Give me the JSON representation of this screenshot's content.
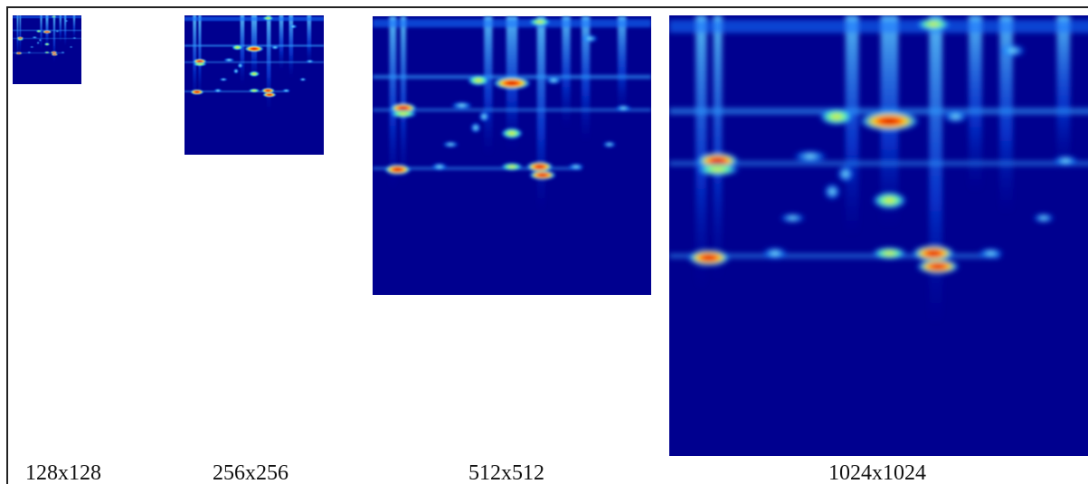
{
  "panels": [
    {
      "label": "128x128"
    },
    {
      "label": "256x256"
    },
    {
      "label": "512x512"
    },
    {
      "label": "1024x1024"
    }
  ]
}
